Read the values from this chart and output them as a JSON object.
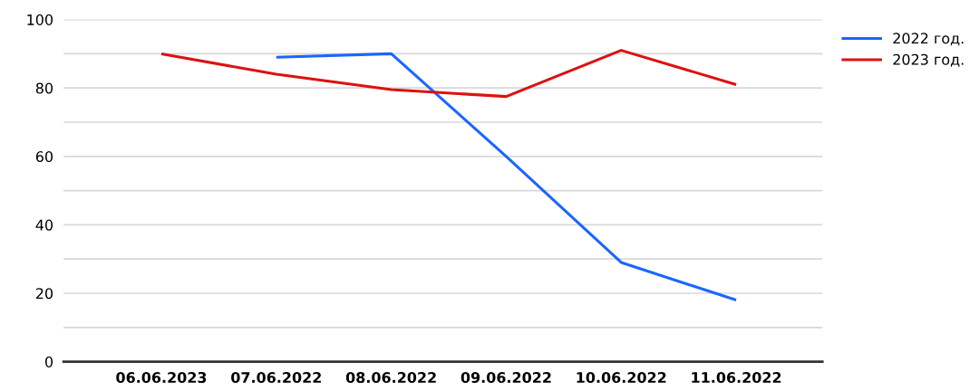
{
  "chart_data": {
    "type": "line",
    "categories": [
      "06.06.2023",
      "07.06.2022",
      "08.06.2022",
      "09.06.2022",
      "10.06.2022",
      "11.06.2022"
    ],
    "series": [
      {
        "name": "2022 год.",
        "color": "#1a66ff",
        "values": [
          null,
          89,
          90,
          60,
          29,
          18
        ]
      },
      {
        "name": "2023 год.",
        "color": "#dd1111",
        "values": [
          90,
          84,
          79.5,
          77.5,
          91,
          81
        ]
      }
    ],
    "ylim": [
      0,
      100
    ],
    "yticks": [
      0,
      {
        "value": 10,
        "label": null
      },
      20,
      {
        "value": 30,
        "label": null
      },
      40,
      {
        "value": 50,
        "label": null
      },
      60,
      {
        "value": 70,
        "label": null
      },
      80,
      {
        "value": 90,
        "label": null
      },
      100
    ],
    "grid": "y",
    "legend": "top right",
    "marker": "none",
    "line_style": "solid"
  }
}
